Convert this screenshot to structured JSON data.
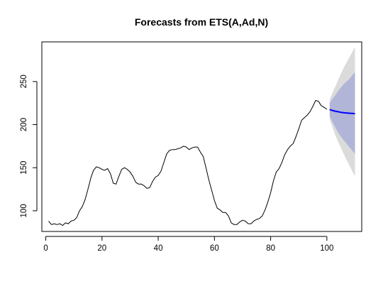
{
  "chart_data": {
    "type": "line",
    "title": "Forecasts from ETS(A,Ad,N)",
    "xlabel": "",
    "ylabel": "",
    "xlim": [
      -1.4,
      112.4
    ],
    "ylim": [
      76,
      296
    ],
    "x_ticks": [
      0,
      20,
      40,
      60,
      80,
      100
    ],
    "y_ticks": [
      100,
      150,
      200,
      250
    ],
    "grid": false,
    "legend": "none",
    "colors": {
      "history": "#000000",
      "forecast": "#0000ff",
      "band95": "#dbdbdb",
      "band80": "#b1b5d7"
    },
    "series": [
      {
        "role": "history",
        "x": [
          1,
          2,
          3,
          4,
          5,
          6,
          7,
          8,
          9,
          10,
          11,
          12,
          13,
          14,
          15,
          16,
          17,
          18,
          19,
          20,
          21,
          22,
          23,
          24,
          25,
          26,
          27,
          28,
          29,
          30,
          31,
          32,
          33,
          34,
          35,
          36,
          37,
          38,
          39,
          40,
          41,
          42,
          43,
          44,
          45,
          46,
          47,
          48,
          49,
          50,
          51,
          52,
          53,
          54,
          55,
          56,
          57,
          58,
          59,
          60,
          61,
          62,
          63,
          64,
          65,
          66,
          67,
          68,
          69,
          70,
          71,
          72,
          73,
          74,
          75,
          76,
          77,
          78,
          79,
          80,
          81,
          82,
          83,
          84,
          85,
          86,
          87,
          88,
          89,
          90,
          91,
          92,
          93,
          94,
          95,
          96,
          97,
          98,
          99,
          100
        ],
        "y": [
          88,
          84,
          85,
          84,
          85,
          83,
          86,
          85,
          88,
          89,
          92,
          100,
          105,
          113,
          125,
          138,
          147,
          151,
          150,
          148,
          147,
          149,
          143,
          132,
          131,
          140,
          148,
          150,
          148,
          145,
          140,
          133,
          131,
          131,
          129,
          126,
          127,
          134,
          139,
          141,
          146,
          156,
          166,
          170,
          171,
          171,
          172,
          173,
          175,
          174,
          171,
          173,
          174,
          174,
          168,
          163,
          150,
          136,
          124,
          112,
          103,
          101,
          98,
          98,
          94,
          86,
          84,
          84,
          87,
          89,
          88,
          85,
          85,
          88,
          90,
          91,
          94,
          101,
          110,
          121,
          135,
          145,
          149,
          156,
          165,
          171,
          175,
          178,
          186,
          195,
          205,
          208,
          211,
          215,
          221,
          228,
          227,
          222,
          220,
          218
        ]
      },
      {
        "role": "forecast",
        "x": [
          101,
          102,
          103,
          104,
          105,
          106,
          107,
          108,
          109,
          110
        ],
        "y": [
          217.5,
          216.4,
          215.6,
          214.9,
          214.3,
          213.8,
          213.5,
          213.2,
          213.0,
          212.8
        ],
        "lo80": [
          210,
          203,
          197,
          191,
          186,
          182,
          178,
          174,
          170,
          166
        ],
        "hi80": [
          225,
          230,
          234,
          239,
          243,
          247,
          250,
          253,
          257,
          261
        ],
        "lo95": [
          206,
          197,
          188,
          180,
          173,
          166,
          159,
          153,
          146,
          140
        ],
        "hi95": [
          229,
          237,
          244,
          252,
          259,
          266,
          272,
          278,
          284,
          290
        ]
      }
    ]
  }
}
